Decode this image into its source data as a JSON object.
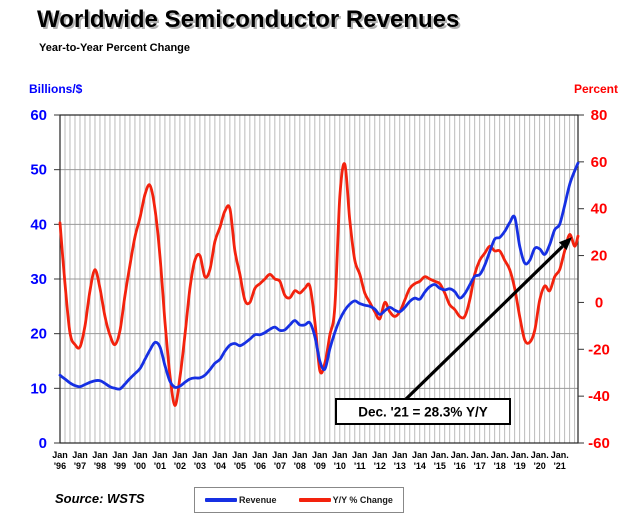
{
  "header": {
    "title": "Worldwide Semiconductor Revenues",
    "subtitle": "Year-to-Year Percent Change"
  },
  "axes": {
    "left_title": "Billions/$",
    "right_title": "Percent",
    "left_ticks": [
      60,
      50,
      40,
      30,
      20,
      10,
      0
    ],
    "right_ticks": [
      80,
      60,
      40,
      20,
      0,
      -20,
      -40,
      -60
    ],
    "left_range": [
      0,
      60
    ],
    "right_range": [
      -60,
      80
    ],
    "x_labels": [
      {
        "line1": "Jan",
        "line2": "'96"
      },
      {
        "line1": "Jan",
        "line2": "'97"
      },
      {
        "line1": "Jan",
        "line2": "'98"
      },
      {
        "line1": "Jan",
        "line2": "'99"
      },
      {
        "line1": "Jan",
        "line2": "'00"
      },
      {
        "line1": "Jan",
        "line2": "'01"
      },
      {
        "line1": "Jan",
        "line2": "'02"
      },
      {
        "line1": "Jan",
        "line2": "'03"
      },
      {
        "line1": "Jan",
        "line2": "'04"
      },
      {
        "line1": "Jan",
        "line2": "'05"
      },
      {
        "line1": "Jan",
        "line2": "'06"
      },
      {
        "line1": "Jan",
        "line2": "'07"
      },
      {
        "line1": "Jan",
        "line2": "'08"
      },
      {
        "line1": "Jan",
        "line2": "'09"
      },
      {
        "line1": "Jan",
        "line2": "'10"
      },
      {
        "line1": "Jan",
        "line2": "'11"
      },
      {
        "line1": "Jan",
        "line2": "'12"
      },
      {
        "line1": "Jan",
        "line2": "'13"
      },
      {
        "line1": "Jan",
        "line2": "'14"
      },
      {
        "line1": "Jan.",
        "line2": "'15"
      },
      {
        "line1": "Jan.",
        "line2": "'16"
      },
      {
        "line1": "Jan.",
        "line2": "'17"
      },
      {
        "line1": "Jan.",
        "line2": "'18"
      },
      {
        "line1": "Jan.",
        "line2": "'19"
      },
      {
        "line1": "Jan.",
        "line2": "'20"
      },
      {
        "line1": "Jan.",
        "line2": "'21"
      }
    ]
  },
  "legend": {
    "items": [
      {
        "label": "Revenue",
        "color": "#1630e3"
      },
      {
        "label": "Y/Y % Change",
        "color": "#f3220d"
      }
    ]
  },
  "annotation": {
    "text": "Dec. '21 = 28.3% Y/Y"
  },
  "source": "Source: WSTS",
  "colors": {
    "revenue_line": "#1630e3",
    "yoy_line": "#f3220d",
    "left_axis": "#0000ff",
    "right_axis": "#ff0000",
    "grid": "#aaaaaa",
    "border": "#222222",
    "arrow": "#000000"
  },
  "chart_data": {
    "type": "line",
    "title": "Worldwide Semiconductor Revenues",
    "subtitle": "Year-to-Year Percent Change",
    "x_unit": "months since Jan 1996 (Jan 1996 .. Dec 2021, monthly 3-month-average data sampled quarterly)",
    "x_start_label": "Jan '96",
    "x_end_label": "Dec '21",
    "x_max_month": 311,
    "grid": "quarterly vertical gridlines, horizontal gridlines every 10 (left scale)",
    "legend_position": "bottom-center",
    "left_axis": {
      "label": "Billions/$",
      "range": [
        0,
        60
      ]
    },
    "right_axis": {
      "label": "Percent",
      "range": [
        -60,
        80
      ]
    },
    "x": [
      0,
      3,
      6,
      9,
      12,
      15,
      18,
      21,
      24,
      27,
      30,
      33,
      36,
      39,
      42,
      45,
      48,
      51,
      54,
      57,
      60,
      63,
      66,
      69,
      72,
      75,
      78,
      81,
      84,
      87,
      90,
      93,
      96,
      99,
      102,
      105,
      108,
      111,
      114,
      117,
      120,
      123,
      126,
      129,
      132,
      135,
      138,
      141,
      144,
      147,
      150,
      153,
      156,
      159,
      162,
      165,
      168,
      171,
      174,
      177,
      180,
      183,
      186,
      189,
      192,
      195,
      198,
      201,
      204,
      207,
      210,
      213,
      216,
      219,
      222,
      225,
      228,
      231,
      234,
      237,
      240,
      243,
      246,
      249,
      252,
      255,
      258,
      261,
      264,
      267,
      270,
      273,
      276,
      279,
      282,
      285,
      288,
      291,
      294,
      297,
      300,
      303,
      306,
      309,
      311
    ],
    "series": [
      {
        "name": "Revenue",
        "axis": "left",
        "color": "#1630e3",
        "values": [
          12.4,
          11.7,
          11.0,
          10.5,
          10.3,
          10.7,
          11.1,
          11.4,
          11.4,
          10.9,
          10.3,
          10.0,
          9.9,
          10.8,
          11.8,
          12.7,
          13.6,
          15.3,
          17.0,
          18.4,
          17.6,
          14.2,
          11.3,
          10.2,
          10.4,
          11.1,
          11.7,
          11.9,
          11.9,
          12.4,
          13.4,
          14.6,
          15.3,
          16.8,
          17.9,
          18.2,
          17.8,
          18.3,
          19.0,
          19.8,
          19.8,
          20.2,
          20.8,
          21.2,
          20.6,
          20.7,
          21.6,
          22.4,
          21.6,
          21.6,
          22.0,
          19.5,
          15.0,
          13.5,
          17.2,
          20.2,
          22.6,
          24.3,
          25.4,
          26.0,
          25.5,
          25.2,
          25.0,
          24.5,
          23.5,
          24.2,
          24.8,
          24.3,
          24.0,
          24.8,
          25.9,
          26.5,
          26.3,
          27.6,
          28.6,
          29.0,
          28.3,
          28.0,
          28.2,
          27.7,
          26.5,
          27.3,
          28.9,
          30.5,
          30.8,
          32.5,
          35.0,
          37.3,
          37.6,
          38.7,
          40.3,
          41.3,
          36.0,
          32.9,
          33.4,
          35.6,
          35.5,
          34.5,
          36.3,
          39.0,
          40.0,
          43.5,
          47.3,
          49.8,
          51.2
        ]
      },
      {
        "name": "Y/Y % Change",
        "axis": "right",
        "color": "#f3220d",
        "values": [
          34,
          8,
          -13,
          -18,
          -19,
          -10,
          5,
          14,
          6,
          -6,
          -14,
          -18,
          -12,
          3,
          16,
          28,
          36,
          46,
          50,
          40,
          20,
          -8,
          -31,
          -44,
          -32,
          -14,
          6,
          18,
          20,
          11,
          14,
          26,
          32,
          39,
          40,
          22,
          12,
          1,
          0,
          6,
          8,
          10,
          12,
          10,
          9,
          3,
          2,
          5,
          4,
          6,
          7,
          -8,
          -29,
          -26,
          -14,
          -2,
          45,
          59,
          35,
          18,
          12,
          4,
          0,
          -4,
          -7,
          0,
          -4,
          -6,
          -4,
          1,
          6,
          8,
          9,
          11,
          10,
          9,
          8,
          4,
          -1,
          -3,
          -6,
          -6,
          1,
          12,
          18,
          21,
          24,
          22,
          22,
          18,
          14,
          6,
          -6,
          -16,
          -17,
          -12,
          1,
          7,
          5,
          11,
          14,
          22,
          29,
          24,
          28.3
        ]
      }
    ],
    "annotation": {
      "text": "Dec. '21 = 28.3% Y/Y",
      "points_to": "last point of Y/Y % Change series (Dec 2021 = 28.3%)"
    }
  }
}
